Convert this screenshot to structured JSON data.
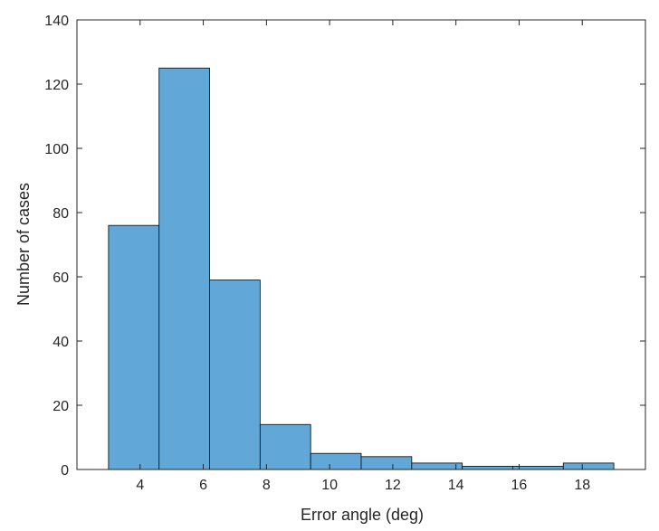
{
  "chart_data": {
    "type": "bar",
    "title": "",
    "xlabel": "Error angle (deg)",
    "ylabel": "Number of cases",
    "bin_edges": [
      3,
      4.6,
      6.2,
      7.8,
      9.4,
      11,
      12.6,
      14.2,
      15.8,
      17.4,
      19
    ],
    "values": [
      76,
      125,
      59,
      14,
      5,
      4,
      2,
      1,
      1,
      2
    ],
    "xlim": [
      2,
      20
    ],
    "ylim": [
      0,
      140
    ],
    "xticks": [
      4,
      6,
      8,
      10,
      12,
      14,
      16,
      18
    ],
    "yticks": [
      0,
      20,
      40,
      60,
      80,
      100,
      120,
      140
    ],
    "grid": false,
    "bar_color": "#61a7d7",
    "edge_color": "#1a1a1a"
  }
}
